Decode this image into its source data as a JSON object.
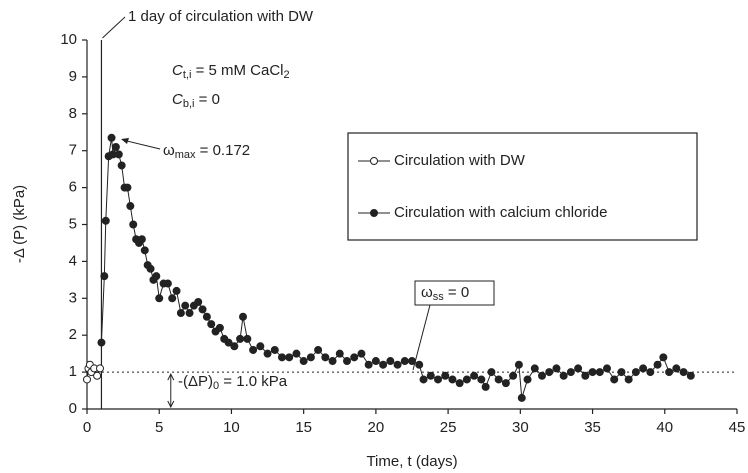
{
  "chart_data": {
    "type": "line",
    "x_label": "Time, t (days)",
    "y_label": "-Δ (P)  (kPa)",
    "xlim": [
      0,
      45
    ],
    "xticks": [
      0,
      5,
      10,
      15,
      20,
      25,
      30,
      35,
      40,
      45
    ],
    "ylim": [
      0,
      10
    ],
    "yticks": [
      0,
      1,
      2,
      3,
      4,
      5,
      6,
      7,
      8,
      9,
      10
    ],
    "legend": "upper right",
    "series": [
      {
        "name": "Circulation with DW",
        "color": "#222222",
        "marker": "open",
        "x": [
          0,
          0.1,
          0.2,
          0.3,
          0.5,
          0.7,
          0.9
        ],
        "values": [
          0.8,
          1.1,
          1.2,
          1.0,
          1.1,
          0.9,
          1.1
        ]
      },
      {
        "name": "Circulation with calcium chloride",
        "color": "#222222",
        "marker": "filled",
        "x": [
          1.0,
          1.2,
          1.3,
          1.5,
          1.7,
          1.8,
          2.0,
          2.2,
          2.4,
          2.6,
          2.8,
          3.0,
          3.2,
          3.4,
          3.6,
          3.8,
          4.0,
          4.2,
          4.4,
          4.6,
          4.8,
          5.0,
          5.3,
          5.6,
          5.9,
          6.2,
          6.5,
          6.8,
          7.1,
          7.4,
          7.7,
          8.0,
          8.3,
          8.6,
          8.9,
          9.2,
          9.5,
          9.8,
          10.2,
          10.6,
          10.8,
          11.1,
          11.5,
          12,
          12.5,
          13,
          13.5,
          14,
          14.5,
          15,
          15.5,
          16,
          16.5,
          17,
          17.5,
          18,
          18.5,
          19,
          19.5,
          20,
          20.5,
          21,
          21.5,
          22,
          22.5,
          23,
          23.3,
          23.8,
          24.3,
          24.8,
          25.3,
          25.8,
          26.3,
          26.8,
          27.3,
          27.6,
          28.0,
          28.5,
          29.0,
          29.5,
          29.9,
          30.1,
          30.5,
          31,
          31.5,
          32,
          32.5,
          33,
          33.5,
          34,
          34.5,
          35,
          35.5,
          36,
          36.5,
          37,
          37.5,
          38,
          38.5,
          39,
          39.5,
          39.9,
          40.3,
          40.8,
          41.3,
          41.8
        ],
        "values": [
          1.8,
          3.6,
          5.1,
          6.85,
          7.35,
          6.9,
          7.1,
          6.9,
          6.6,
          6.0,
          6.0,
          5.5,
          5.0,
          4.6,
          4.5,
          4.6,
          4.3,
          3.9,
          3.8,
          3.5,
          3.6,
          3.0,
          3.4,
          3.4,
          3.0,
          3.2,
          2.6,
          2.8,
          2.6,
          2.8,
          2.9,
          2.7,
          2.5,
          2.3,
          2.1,
          2.2,
          1.9,
          1.8,
          1.7,
          1.9,
          2.5,
          1.9,
          1.6,
          1.7,
          1.5,
          1.6,
          1.4,
          1.4,
          1.5,
          1.3,
          1.4,
          1.6,
          1.4,
          1.3,
          1.5,
          1.3,
          1.4,
          1.5,
          1.2,
          1.3,
          1.2,
          1.3,
          1.2,
          1.3,
          1.3,
          1.2,
          0.8,
          0.9,
          0.8,
          0.9,
          0.8,
          0.7,
          0.8,
          0.9,
          0.8,
          0.6,
          1.0,
          0.8,
          0.7,
          0.9,
          1.2,
          0.3,
          0.8,
          1.1,
          0.9,
          1.0,
          1.1,
          0.9,
          1.0,
          1.1,
          0.9,
          1.0,
          1.0,
          1.1,
          0.8,
          1.0,
          0.8,
          1.0,
          1.1,
          1.0,
          1.2,
          1.4,
          1.0,
          1.1,
          1.0,
          0.9
        ]
      }
    ],
    "marker_x": 1,
    "reference_y": 1.0,
    "annotations": [
      {
        "parts": [
          {
            "t": "1 day of circulation with DW"
          }
        ]
      },
      {
        "parts": [
          {
            "t": "C"
          },
          {
            "sub": "t,i"
          },
          {
            "t": " = 5 mM CaCl"
          },
          {
            "sub": "2"
          }
        ]
      },
      {
        "parts": [
          {
            "t": "C"
          },
          {
            "sub": "b,i"
          },
          {
            "t": " = 0"
          }
        ]
      },
      {
        "parts": [
          {
            "t": "ω"
          },
          {
            "sub": "max"
          },
          {
            "t": " = 0.172"
          }
        ]
      },
      {
        "parts": [
          {
            "t": "ω"
          },
          {
            "sub": "ss"
          },
          {
            "t": " = 0"
          }
        ]
      },
      {
        "parts": [
          {
            "t": "-(ΔP)"
          },
          {
            "sub": "0"
          },
          {
            "t": " = 1.0 kPa"
          }
        ]
      }
    ]
  }
}
